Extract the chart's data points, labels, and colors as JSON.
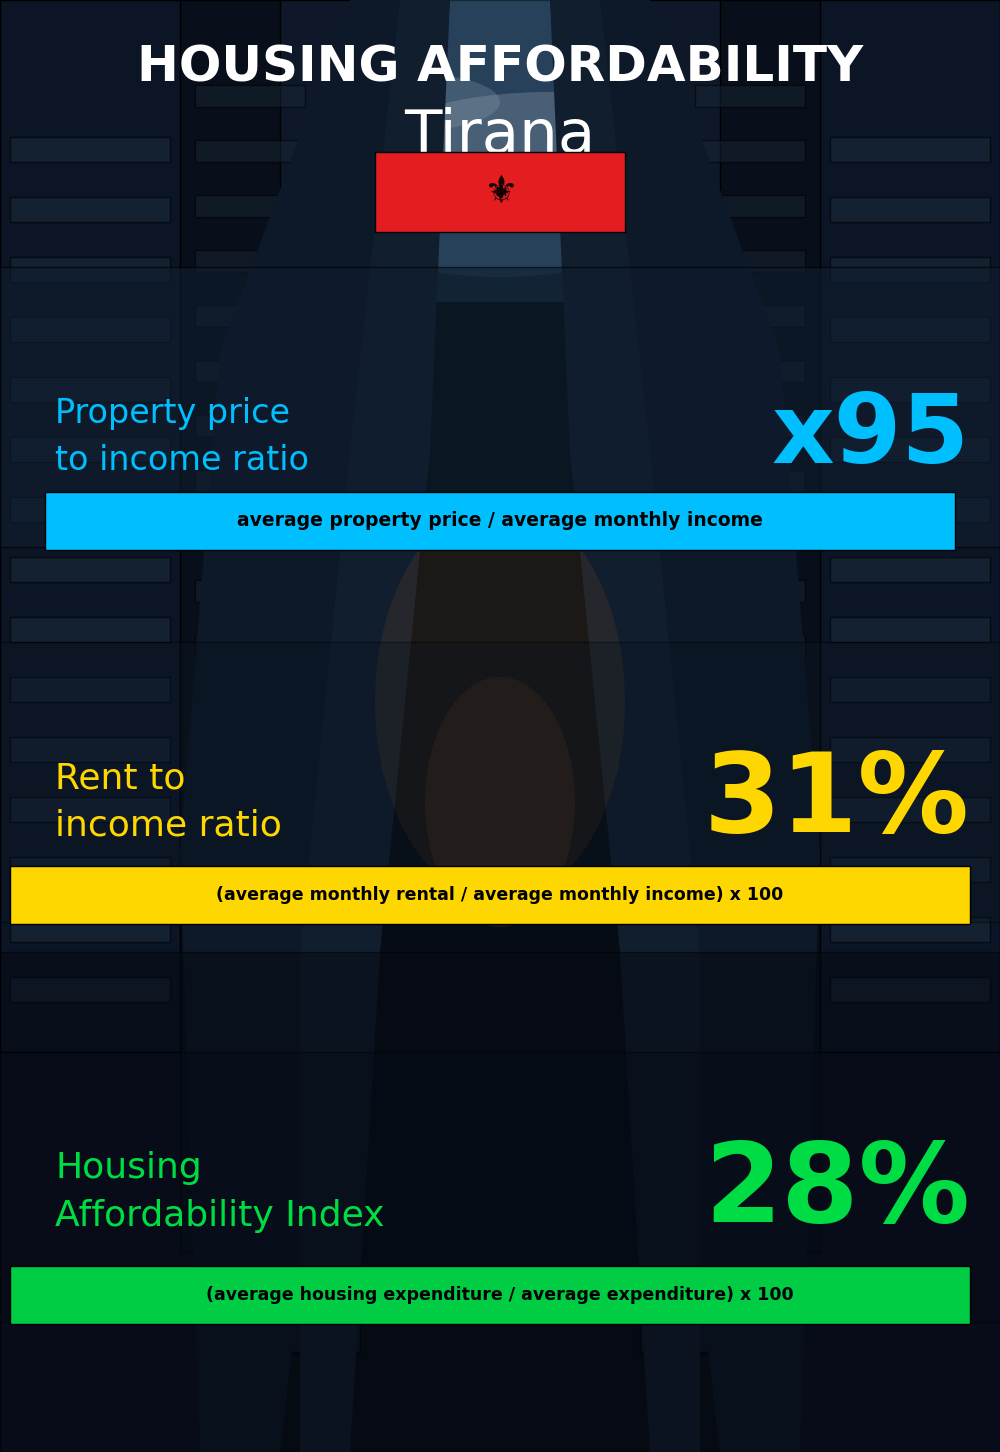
{
  "title_line1": "HOUSING AFFORDABILITY",
  "title_line2": "Tirana",
  "bg_color": "#070d16",
  "section1_label": "Property price\nto income ratio",
  "section1_value": "x95",
  "section1_label_color": "#00bfff",
  "section1_value_color": "#00bfff",
  "section1_subtext": "average property price / average monthly income",
  "section1_sub_bg": "#00bfff",
  "section1_sub_color": "#000000",
  "section2_label": "Rent to\nincome ratio",
  "section2_value": "31%",
  "section2_label_color": "#ffd700",
  "section2_value_color": "#ffd700",
  "section2_subtext": "(average monthly rental / average monthly income) x 100",
  "section2_sub_bg": "#ffd700",
  "section2_sub_color": "#000000",
  "section3_label": "Housing\nAffordability Index",
  "section3_value": "28%",
  "section3_label_color": "#00dd44",
  "section3_value_color": "#00dd44",
  "section3_subtext": "(average housing expenditure / average expenditure) x 100",
  "section3_sub_bg": "#00cc44",
  "section3_sub_color": "#000000",
  "title_color": "#ffffff",
  "city_color": "#ffffff"
}
